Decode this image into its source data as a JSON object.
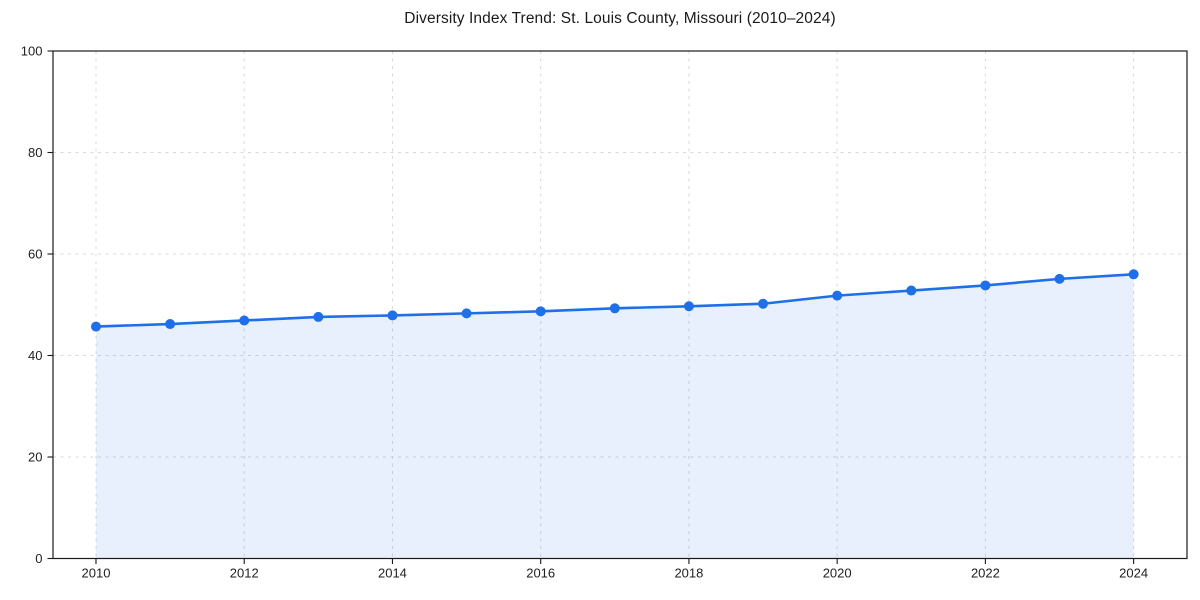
{
  "page": {
    "background": "#ffffff"
  },
  "chart_data": {
    "type": "area",
    "title": "Diversity Index Trend: St. Louis County, Missouri (2010–2024)",
    "x": [
      2010,
      2011,
      2012,
      2013,
      2014,
      2015,
      2016,
      2017,
      2018,
      2019,
      2020,
      2021,
      2022,
      2023,
      2024
    ],
    "series": [
      {
        "name": "Diversity Index",
        "values": [
          45.7,
          46.2,
          46.9,
          47.6,
          47.9,
          48.3,
          48.7,
          49.3,
          49.7,
          50.2,
          51.8,
          52.8,
          53.8,
          55.1,
          56.0
        ]
      }
    ],
    "xlabel": "",
    "ylabel": "",
    "xlim": [
      2009.42,
      2024.72
    ],
    "ylim": [
      0,
      100
    ],
    "xticks": [
      2010,
      2012,
      2014,
      2016,
      2018,
      2020,
      2022,
      2024
    ],
    "yticks": [
      0,
      20,
      40,
      60,
      80,
      100
    ],
    "grid": true,
    "grid_style": "dashed",
    "legend_position": "none",
    "marker": "circle",
    "colors": {
      "line": "#1f6fe8",
      "marker": "#1f6fe8",
      "fill": "rgba(31,111,232,0.10)",
      "grid": "#d9d9d9",
      "axis": "#1a1a1a",
      "tick_label": "#1f1f1f",
      "title": "#1a1a1a",
      "background": "#ffffff"
    }
  }
}
